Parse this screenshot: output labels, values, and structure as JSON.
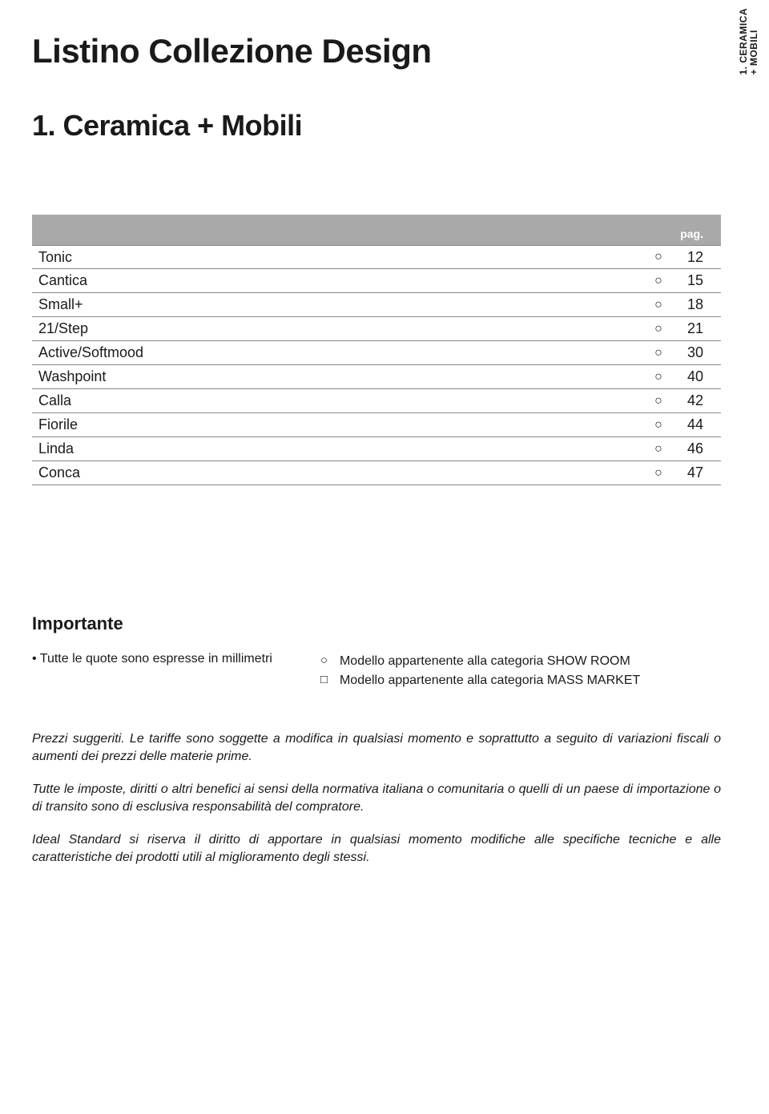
{
  "side_tab": {
    "line1": "1. CERAMICA",
    "line2": "+ MOBILI"
  },
  "main_title": "Listino Collezione Design",
  "section_title": "1. Ceramica + Mobili",
  "table": {
    "header_label": "pag.",
    "marker_symbol": "○",
    "rows": [
      {
        "name": "Tonic",
        "page": "12"
      },
      {
        "name": "Cantica",
        "page": "15"
      },
      {
        "name": "Small+",
        "page": "18"
      },
      {
        "name": "21/Step",
        "page": "21"
      },
      {
        "name": "Active/Softmood",
        "page": "30"
      },
      {
        "name": "Washpoint",
        "page": "40"
      },
      {
        "name": "Calla",
        "page": "42"
      },
      {
        "name": "Fiorile",
        "page": "44"
      },
      {
        "name": "Linda",
        "page": "46"
      },
      {
        "name": "Conca",
        "page": "47"
      }
    ]
  },
  "importante": {
    "heading": "Importante",
    "bullet": "• Tutte le quote sono espresse in millimetri",
    "legend": [
      {
        "symbol": "○",
        "text": "Modello appartenente alla categoria SHOW ROOM"
      },
      {
        "symbol": "□",
        "text": "Modello appartenente alla categoria MASS MARKET"
      }
    ]
  },
  "disclaimer": {
    "p1": "Prezzi suggeriti. Le tariffe sono soggette a modifica in qualsiasi momento e soprattutto a seguito di variazioni fiscali o aumenti dei prezzi delle materie prime.",
    "p2": "Tutte le imposte, diritti o altri benefici ai sensi della normativa italiana o comunitaria o quelli di un paese di importazione o di transito sono di esclusiva responsabilità del compratore.",
    "p3": "Ideal Standard si riserva il diritto di apportare in qualsiasi momento modifiche alle specifiche tecniche e alle caratteristiche dei prodotti utili al miglioramento degli stessi."
  },
  "colors": {
    "header_bg": "#a9a9a9",
    "text": "#1a1a1a",
    "rule": "#888888"
  }
}
